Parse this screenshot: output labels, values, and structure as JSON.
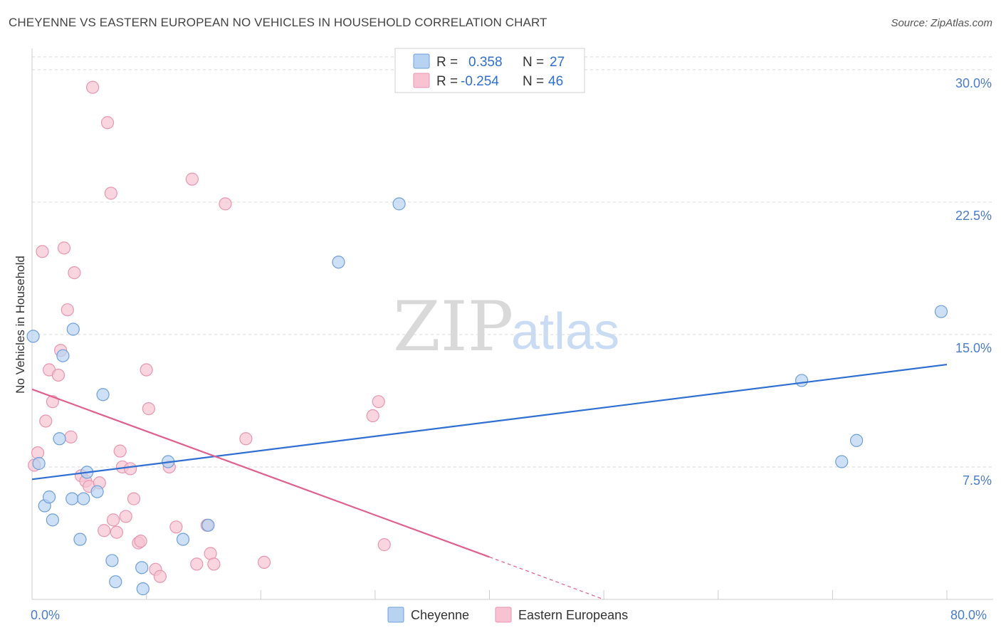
{
  "title": "CHEYENNE VS EASTERN EUROPEAN NO VEHICLES IN HOUSEHOLD CORRELATION CHART",
  "source": "Source: ZipAtlas.com",
  "watermark": {
    "zip": "ZIP",
    "atlas": "atlas"
  },
  "colors": {
    "cheyenne_fill": "#b8d3f2",
    "cheyenne_stroke": "#6f9fd9",
    "cheyenne_line": "#2f6fd1",
    "eastern_fill": "#f7c3d2",
    "eastern_stroke": "#e896b0",
    "eastern_line": "#e0608c",
    "grid": "#d9d9d9",
    "axis_text": "#4a7cc9"
  },
  "legend": {
    "rows": [
      {
        "r_label": "R =",
        "r_value": "0.358",
        "n_label": "N =",
        "n_value": "27"
      },
      {
        "r_label": "R =",
        "r_value": "-0.254",
        "n_label": "N =",
        "n_value": "46"
      }
    ]
  },
  "chart_data": {
    "type": "scatter",
    "title": "CHEYENNE VS EASTERN EUROPEAN NO VEHICLES IN HOUSEHOLD CORRELATION CHART",
    "xlabel": "",
    "ylabel": "No Vehicles in Household",
    "xlim": [
      0,
      80
    ],
    "ylim": [
      0,
      30.8
    ],
    "x_tick_labels": [
      "0.0%",
      "80.0%"
    ],
    "y_ticks": [
      7.5,
      15.0,
      22.5,
      30.0
    ],
    "y_tick_labels": [
      "7.5%",
      "15.0%",
      "22.5%",
      "30.0%"
    ],
    "grid": true,
    "legend_position": "top-center",
    "series": [
      {
        "name": "Cheyenne",
        "points": [
          [
            0.1,
            14.9
          ],
          [
            0.6,
            7.7
          ],
          [
            1.1,
            5.3
          ],
          [
            1.5,
            5.8
          ],
          [
            1.8,
            4.5
          ],
          [
            2.4,
            9.1
          ],
          [
            2.7,
            13.8
          ],
          [
            3.5,
            5.7
          ],
          [
            3.6,
            15.3
          ],
          [
            4.2,
            3.4
          ],
          [
            4.5,
            5.7
          ],
          [
            4.8,
            7.2
          ],
          [
            5.7,
            6.1
          ],
          [
            6.2,
            11.6
          ],
          [
            7.0,
            2.2
          ],
          [
            7.3,
            1.0
          ],
          [
            9.6,
            1.8
          ],
          [
            9.7,
            0.6
          ],
          [
            11.9,
            7.8
          ],
          [
            13.2,
            3.4
          ],
          [
            15.4,
            4.2
          ],
          [
            26.8,
            19.1
          ],
          [
            32.1,
            22.4
          ],
          [
            67.3,
            12.4
          ],
          [
            70.8,
            7.8
          ],
          [
            72.1,
            9.0
          ],
          [
            79.5,
            16.3
          ]
        ],
        "trendline": {
          "x": [
            0,
            80
          ],
          "y": [
            6.8,
            13.3
          ]
        }
      },
      {
        "name": "Eastern Europeans",
        "points": [
          [
            0.2,
            7.6
          ],
          [
            0.5,
            8.3
          ],
          [
            0.9,
            19.7
          ],
          [
            1.2,
            10.1
          ],
          [
            1.5,
            13.0
          ],
          [
            1.8,
            11.2
          ],
          [
            2.3,
            12.7
          ],
          [
            2.5,
            14.1
          ],
          [
            2.8,
            19.9
          ],
          [
            3.1,
            16.4
          ],
          [
            3.4,
            9.2
          ],
          [
            3.7,
            18.5
          ],
          [
            4.3,
            7.0
          ],
          [
            4.7,
            6.7
          ],
          [
            5.0,
            6.4
          ],
          [
            5.3,
            29.0
          ],
          [
            5.9,
            6.6
          ],
          [
            6.3,
            3.9
          ],
          [
            6.6,
            27.0
          ],
          [
            6.9,
            23.0
          ],
          [
            7.1,
            4.5
          ],
          [
            7.4,
            3.8
          ],
          [
            7.7,
            8.4
          ],
          [
            7.9,
            7.5
          ],
          [
            8.2,
            4.7
          ],
          [
            8.6,
            7.4
          ],
          [
            8.9,
            5.7
          ],
          [
            9.3,
            3.2
          ],
          [
            9.5,
            3.3
          ],
          [
            10.0,
            13.0
          ],
          [
            10.2,
            10.8
          ],
          [
            10.8,
            1.7
          ],
          [
            11.2,
            1.3
          ],
          [
            12.0,
            7.5
          ],
          [
            12.6,
            4.1
          ],
          [
            14.0,
            23.8
          ],
          [
            14.4,
            2.0
          ],
          [
            15.3,
            4.2
          ],
          [
            15.6,
            2.6
          ],
          [
            15.9,
            2.0
          ],
          [
            16.9,
            22.4
          ],
          [
            18.7,
            9.1
          ],
          [
            20.3,
            2.1
          ],
          [
            29.8,
            10.4
          ],
          [
            30.3,
            11.2
          ],
          [
            30.8,
            3.1
          ]
        ],
        "trendline": {
          "x": [
            0,
            40
          ],
          "y": [
            11.9,
            2.4
          ]
        },
        "trendline_dashed": {
          "x": [
            40,
            50
          ],
          "y": [
            2.4,
            0
          ]
        }
      }
    ]
  }
}
